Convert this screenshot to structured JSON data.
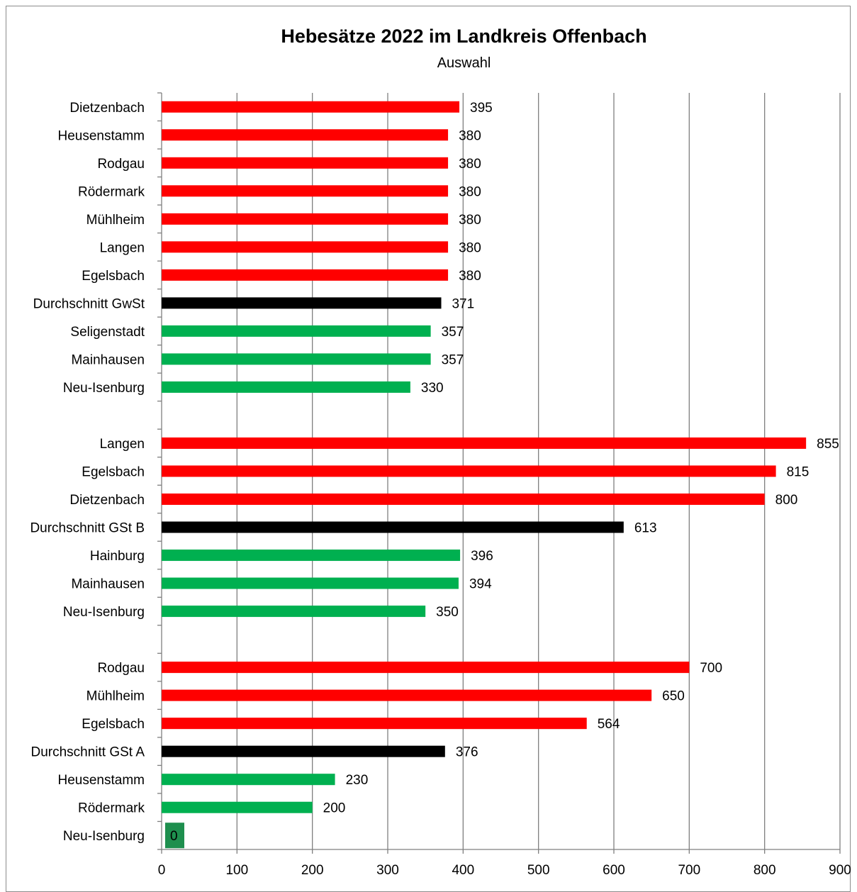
{
  "chart_data": {
    "type": "bar",
    "orientation": "horizontal",
    "title": "Hebesätze 2022 im Landkreis Offenbach",
    "subtitle": "Auswahl",
    "xlabel": "",
    "ylabel": "",
    "xlim": [
      0,
      900
    ],
    "xticks": [
      "0",
      "100",
      "200",
      "300",
      "400",
      "500",
      "600",
      "700",
      "800",
      "900"
    ],
    "grid": "vertical",
    "colors": {
      "above_average": "#ff0000",
      "average": "#000000",
      "below_average": "#00b050",
      "zero": "#1e8f4e"
    },
    "categories": [
      {
        "label": "Dietzenbach",
        "value": 395,
        "color": "#ff0000"
      },
      {
        "label": "Heusenstamm",
        "value": 380,
        "color": "#ff0000"
      },
      {
        "label": "Rodgau",
        "value": 380,
        "color": "#ff0000"
      },
      {
        "label": "Rödermark",
        "value": 380,
        "color": "#ff0000"
      },
      {
        "label": "Mühlheim",
        "value": 380,
        "color": "#ff0000"
      },
      {
        "label": "Langen",
        "value": 380,
        "color": "#ff0000"
      },
      {
        "label": "Egelsbach",
        "value": 380,
        "color": "#ff0000"
      },
      {
        "label": "Durchschnitt GwSt",
        "value": 371,
        "color": "#000000"
      },
      {
        "label": "Seligenstadt",
        "value": 357,
        "color": "#00b050"
      },
      {
        "label": "Mainhausen",
        "value": 357,
        "color": "#00b050"
      },
      {
        "label": "Neu-Isenburg",
        "value": 330,
        "color": "#00b050"
      },
      {
        "label": "",
        "value": null,
        "color": ""
      },
      {
        "label": "Langen",
        "value": 855,
        "color": "#ff0000"
      },
      {
        "label": "Egelsbach",
        "value": 815,
        "color": "#ff0000"
      },
      {
        "label": "Dietzenbach",
        "value": 800,
        "color": "#ff0000"
      },
      {
        "label": "Durchschnitt GSt B",
        "value": 613,
        "color": "#000000"
      },
      {
        "label": "Hainburg",
        "value": 396,
        "color": "#00b050"
      },
      {
        "label": "Mainhausen",
        "value": 394,
        "color": "#00b050"
      },
      {
        "label": "Neu-Isenburg",
        "value": 350,
        "color": "#00b050"
      },
      {
        "label": "",
        "value": null,
        "color": ""
      },
      {
        "label": "Rodgau",
        "value": 700,
        "color": "#ff0000"
      },
      {
        "label": "Mühlheim",
        "value": 650,
        "color": "#ff0000"
      },
      {
        "label": "Egelsbach",
        "value": 564,
        "color": "#ff0000"
      },
      {
        "label": "Durchschnitt GSt A",
        "value": 376,
        "color": "#000000"
      },
      {
        "label": "Heusenstamm",
        "value": 230,
        "color": "#00b050"
      },
      {
        "label": "Rödermark",
        "value": 200,
        "color": "#00b050"
      },
      {
        "label": "Neu-Isenburg",
        "value": 0,
        "color": "#1e8f4e"
      }
    ]
  }
}
